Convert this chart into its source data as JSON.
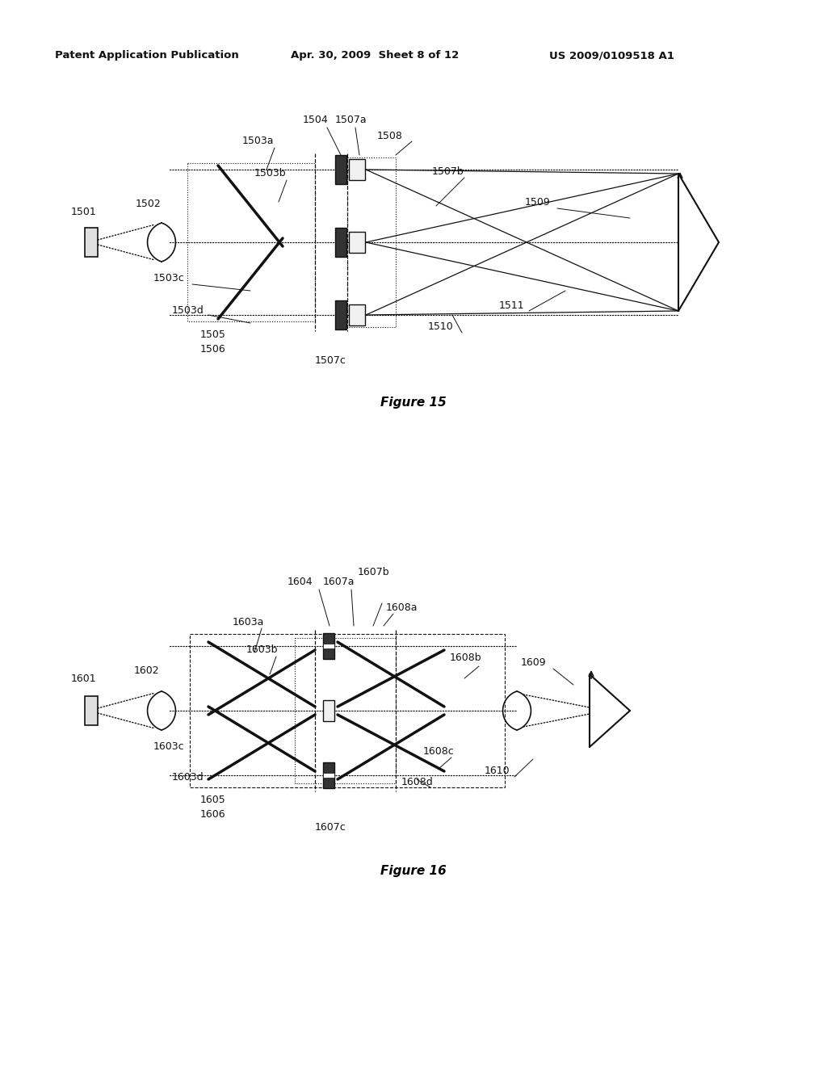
{
  "bg_color": "#ffffff",
  "header_text": "Patent Application Publication",
  "header_date": "Apr. 30, 2009  Sheet 8 of 12",
  "header_patent": "US 2009/0109518 A1",
  "fig15_caption": "Figure 15",
  "fig16_caption": "Figure 16"
}
